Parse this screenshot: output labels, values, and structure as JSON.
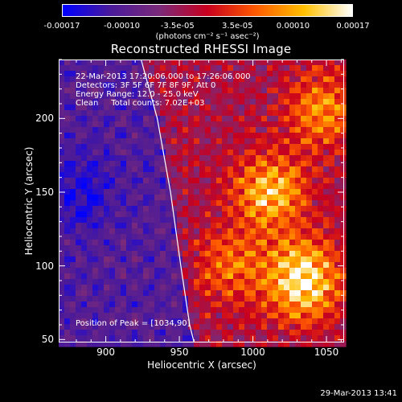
{
  "chart_data": {
    "type": "heatmap",
    "title": "Reconstructed RHESSI Image",
    "xlabel": "Heliocentric X (arcsec)",
    "ylabel": "Heliocentric Y (arcsec)",
    "xlim": [
      868,
      1062
    ],
    "ylim": [
      48,
      240
    ],
    "x_ticks": [
      900,
      950,
      1000,
      1050
    ],
    "y_ticks": [
      50,
      100,
      150,
      200
    ],
    "colorbar": {
      "range": [
        -0.00017,
        0.00017
      ],
      "tick_values": [
        -0.00017,
        -0.0001,
        -3.5e-05,
        3.5e-05,
        0.0001,
        0.00017
      ],
      "tick_labels": [
        "-0.00017",
        "-0.00010",
        "-3.5e-05",
        "3.5e-05",
        "0.00010",
        "0.00017"
      ],
      "units_label": "(photons cm⁻² s⁻¹ asec⁻²)",
      "colormap_stops": [
        "#0000ff",
        "#4a1a9a",
        "#7a2a7a",
        "#c8001e",
        "#ff5a00",
        "#ffc000",
        "#ffffff"
      ]
    },
    "annotations": [
      "22-Mar-2013 17:20:06.000 to 17:26:06.000",
      "Detectors: 3F 5F 6F 7F 8F 9F, Att 0",
      "Energy Range: 12.0 - 25.0 keV",
      "Clean     Total counts: 7.02E+03"
    ],
    "peak_label": "Position of Peak = [1034,90]",
    "peak_position": [
      1034,
      90
    ],
    "sources": [
      {
        "x": 1034,
        "y": 90,
        "intensity": 1.0
      },
      {
        "x": 1012,
        "y": 150,
        "intensity": 0.75
      },
      {
        "x": 1047,
        "y": 205,
        "intensity": 0.55
      },
      {
        "x": 985,
        "y": 100,
        "intensity": 0.45
      }
    ],
    "limb_curve": [
      [
        924,
        240
      ],
      [
        935,
        200
      ],
      [
        944,
        150
      ],
      [
        951,
        100
      ],
      [
        957,
        60
      ],
      [
        960,
        48
      ]
    ]
  },
  "timestamp": "29-Mar-2013 13:41"
}
